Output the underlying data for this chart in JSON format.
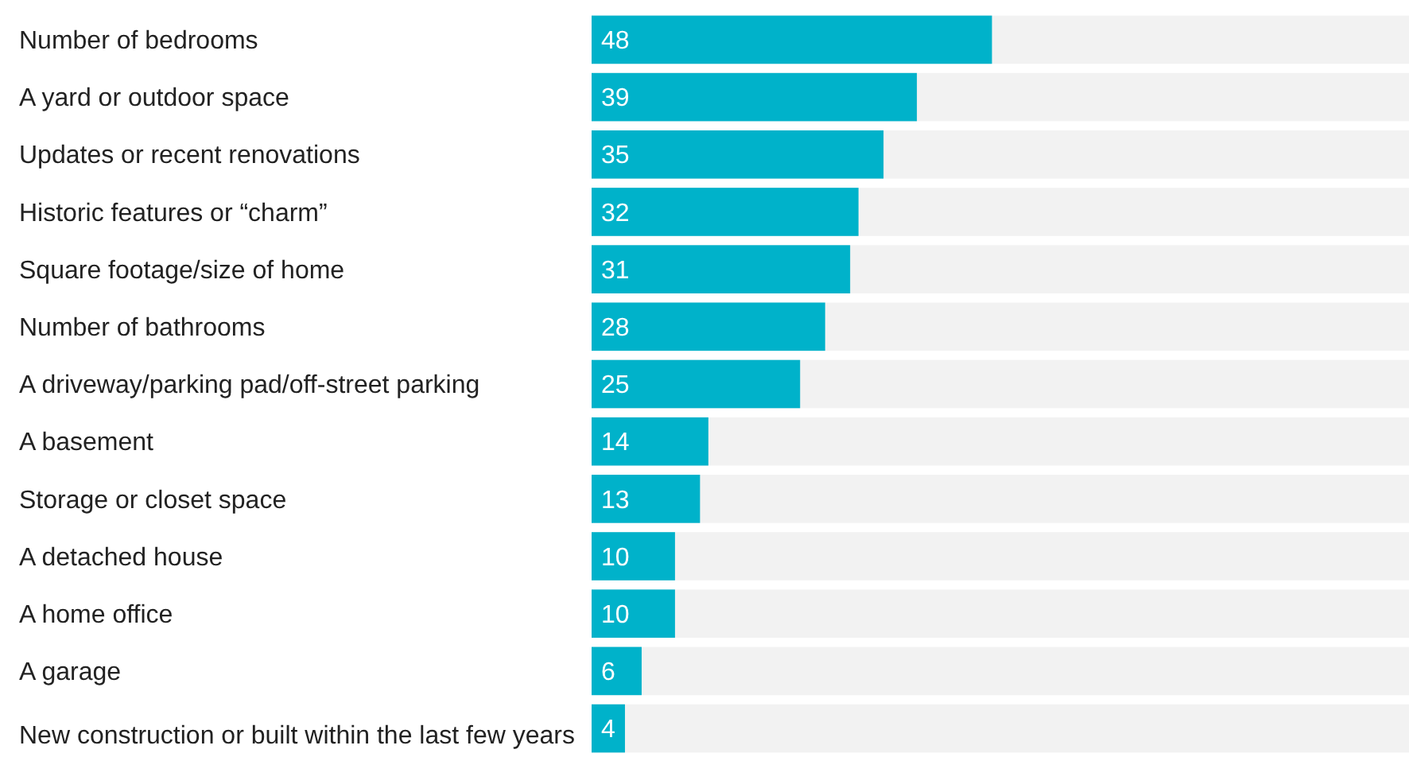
{
  "chart_data": {
    "type": "bar",
    "orientation": "horizontal",
    "categories": [
      "Number of bedrooms",
      "A yard or outdoor space",
      "Updates or recent renovations",
      "Historic features or “charm”",
      "Square footage/size of home",
      "Number of bathrooms",
      "A driveway/parking pad/off-street parking",
      "A basement",
      "Storage or closet space",
      "A detached house",
      "A home office",
      "A garage",
      "New construction or built within the last few years"
    ],
    "values": [
      48,
      39,
      35,
      32,
      31,
      28,
      25,
      14,
      13,
      10,
      10,
      6,
      4
    ],
    "color": "#00b2ca",
    "xlim": [
      0,
      98
    ],
    "data_labels": true
  }
}
